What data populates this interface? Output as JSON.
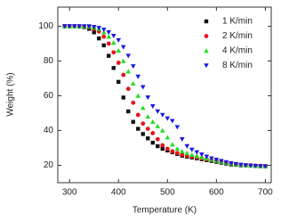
{
  "chart_data": {
    "type": "scatter",
    "x_label": "Temperature (K)",
    "y_label": "Weight (%)",
    "x": [
      290,
      300,
      310,
      320,
      330,
      340,
      350,
      360,
      370,
      380,
      390,
      400,
      410,
      420,
      430,
      440,
      450,
      460,
      470,
      480,
      490,
      500,
      510,
      520,
      530,
      540,
      550,
      560,
      570,
      580,
      590,
      600,
      610,
      620,
      630,
      640,
      650,
      660,
      670,
      680,
      690,
      700
    ],
    "series": [
      {
        "name": "1 K/min",
        "color": "#111111",
        "marker": "square",
        "values": [
          100,
          100,
          100,
          99.8,
          99.5,
          98.5,
          96.5,
          93,
          89,
          83,
          76,
          68,
          59,
          51,
          45,
          41,
          38,
          35.5,
          33,
          31,
          29.5,
          28.5,
          27.5,
          26.5,
          25.5,
          25,
          24.5,
          24,
          23.5,
          23,
          22.5,
          22,
          21.5,
          21,
          20.5,
          20.3,
          20,
          20,
          19.8,
          19.6,
          19.5,
          19.4
        ]
      },
      {
        "name": "2 K/min",
        "color": "#e8141b",
        "marker": "circle",
        "values": [
          100,
          100,
          100,
          100,
          99.8,
          99.5,
          98.5,
          97,
          94,
          90,
          85,
          79,
          72,
          64,
          56,
          49,
          44,
          41,
          38.5,
          35,
          31.5,
          29.5,
          28,
          27,
          26,
          25.5,
          25,
          24.5,
          24,
          23.5,
          23,
          22.5,
          22,
          21.5,
          21,
          20.5,
          20.3,
          20,
          20,
          19.8,
          19.6,
          19.5
        ]
      },
      {
        "name": "4 K/min",
        "color": "#22dd22",
        "marker": "triangle-up",
        "values": [
          100,
          100,
          100,
          100,
          100,
          99.8,
          99.3,
          98.5,
          96.5,
          94,
          90.5,
          86,
          80,
          74,
          67,
          60,
          53,
          48,
          45,
          42.5,
          40,
          36,
          32,
          29.5,
          28,
          27,
          26,
          25.3,
          24.6,
          24,
          23.3,
          22.7,
          22,
          21.5,
          21,
          20.6,
          20.3,
          20,
          19.8,
          19.6,
          19.5,
          19.4
        ]
      },
      {
        "name": "8 K/min",
        "color": "#1a1ae0",
        "marker": "triangle-down",
        "values": [
          100,
          100,
          100,
          100,
          100,
          100,
          99.6,
          99,
          98,
          96.5,
          94.5,
          92,
          88,
          83,
          77,
          71,
          65,
          59,
          54,
          51,
          49,
          47,
          45.5,
          42,
          35,
          31,
          29,
          27.5,
          26.2,
          25,
          24,
          23.2,
          22.5,
          21.8,
          21.2,
          20.7,
          20.3,
          20,
          19.8,
          19.6,
          19.5,
          19.4
        ]
      }
    ],
    "xlim": [
      276,
      712
    ],
    "ylim": [
      10,
      111
    ],
    "xticks": [
      300,
      400,
      500,
      600,
      700
    ],
    "yticks": [
      20,
      40,
      60,
      80,
      100
    ],
    "legend": "upper right",
    "grid": false
  }
}
